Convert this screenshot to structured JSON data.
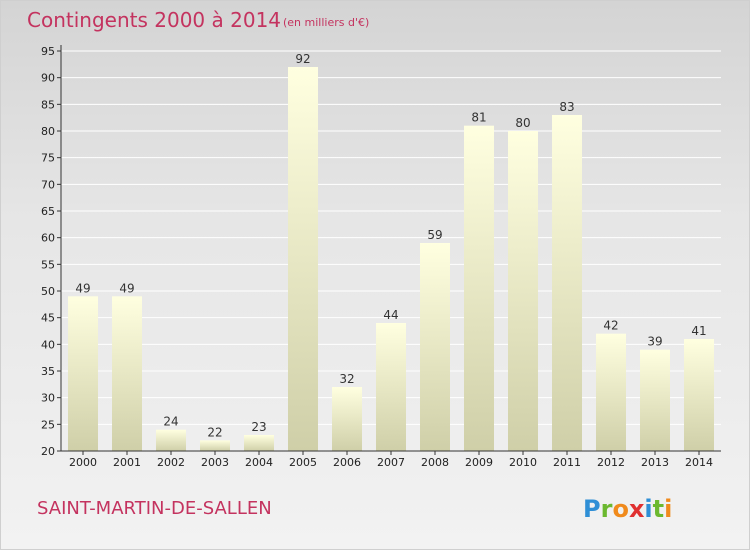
{
  "colors": {
    "title": "#c4335f",
    "bar_top": "#ffffe0",
    "bar_bottom": "#cfcfa8",
    "grid": "#ffffff",
    "axis": "#333333"
  },
  "commune": "SAINT-MARTIN-DE-SALLEN",
  "logo": {
    "text": "Proxiti",
    "letters": [
      "P",
      "r",
      "o",
      "x",
      "i",
      "t",
      "i"
    ],
    "letter_colors": [
      "#2f8fd6",
      "#6bb82f",
      "#f08a1c",
      "#e03030",
      "#2f8fd6",
      "#6bb82f",
      "#f08a1c"
    ]
  },
  "chart_data": {
    "type": "bar",
    "title": "Contingents 2000 à 2014",
    "subtitle": "(en milliers d'€)",
    "xlabel": "",
    "ylabel": "",
    "categories": [
      "2000",
      "2001",
      "2002",
      "2003",
      "2004",
      "2005",
      "2006",
      "2007",
      "2008",
      "2009",
      "2010",
      "2011",
      "2012",
      "2013",
      "2014"
    ],
    "values": [
      49,
      49,
      24,
      22,
      23,
      92,
      32,
      44,
      59,
      81,
      80,
      83,
      42,
      39,
      41
    ],
    "ylim": [
      20,
      95
    ],
    "yticks": [
      20,
      25,
      30,
      35,
      40,
      45,
      50,
      55,
      60,
      65,
      70,
      75,
      80,
      85,
      90,
      95
    ],
    "grid": true,
    "legend": "none"
  }
}
